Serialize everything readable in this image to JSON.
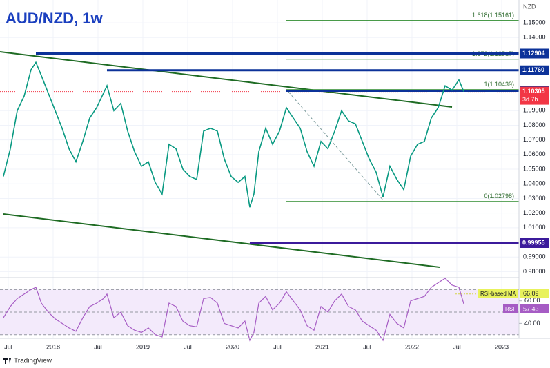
{
  "title": "AUD/NZD, 1w",
  "currency": "NZD",
  "brand": "TradingView",
  "chart_data": {
    "type": "line",
    "color": "#089981",
    "x": [
      2017.446,
      2017.523,
      2017.6,
      2017.677,
      2017.754,
      2017.808,
      2017.869,
      2017.946,
      2018.023,
      2018.1,
      2018.177,
      2018.254,
      2018.331,
      2018.408,
      2018.485,
      2018.562,
      2018.6,
      2018.677,
      2018.754,
      2018.831,
      2018.908,
      2018.985,
      2019.062,
      2019.138,
      2019.215,
      2019.292,
      2019.369,
      2019.446,
      2019.523,
      2019.6,
      2019.677,
      2019.754,
      2019.831,
      2019.908,
      2019.985,
      2020.062,
      2020.138,
      2020.192,
      2020.238,
      2020.292,
      2020.369,
      2020.446,
      2020.523,
      2020.6,
      2020.677,
      2020.754,
      2020.831,
      2020.908,
      2020.985,
      2021.062,
      2021.138,
      2021.215,
      2021.292,
      2021.369,
      2021.446,
      2021.523,
      2021.6,
      2021.677,
      2021.754,
      2021.831,
      2021.908,
      2021.985,
      2022.062,
      2022.138,
      2022.215,
      2022.292,
      2022.369,
      2022.446,
      2022.523,
      2022.577
    ],
    "values": [
      1.045,
      1.064,
      1.09,
      1.1,
      1.118,
      1.123,
      1.114,
      1.102,
      1.09,
      1.078,
      1.064,
      1.055,
      1.069,
      1.085,
      1.092,
      1.102,
      1.107,
      1.09,
      1.095,
      1.076,
      1.062,
      1.052,
      1.055,
      1.041,
      1.033,
      1.067,
      1.064,
      1.05,
      1.045,
      1.043,
      1.076,
      1.078,
      1.076,
      1.057,
      1.045,
      1.041,
      1.045,
      1.024,
      1.033,
      1.062,
      1.078,
      1.067,
      1.076,
      1.092,
      1.085,
      1.078,
      1.062,
      1.052,
      1.069,
      1.064,
      1.076,
      1.09,
      1.083,
      1.081,
      1.069,
      1.057,
      1.048,
      1.031,
      1.052,
      1.043,
      1.036,
      1.059,
      1.067,
      1.069,
      1.085,
      1.092,
      1.107,
      1.104,
      1.111,
      1.10305
    ],
    "xlim": [
      2017.408,
      2023.192
    ],
    "xticks": [
      {
        "value": 2017.5,
        "label": "Jul"
      },
      2018,
      {
        "value": 2018.5,
        "label": "Jul"
      },
      2019,
      {
        "value": 2019.5,
        "label": "Jul"
      },
      2020,
      {
        "value": 2020.5,
        "label": "Jul"
      },
      2021,
      {
        "value": 2021.5,
        "label": "Jul"
      },
      2022,
      {
        "value": 2022.5,
        "label": "Jul"
      },
      2023
    ],
    "ylim": [
      0.9769,
      1.1656
    ],
    "yticks": [
      {
        "value": 0.98,
        "label": "0.98000"
      },
      {
        "value": 0.99,
        "label": "0.99000"
      },
      {
        "value": 1.01,
        "label": "1.01000"
      },
      {
        "value": 1.02,
        "label": "1.02000"
      },
      {
        "value": 1.03,
        "label": "1.03000"
      },
      {
        "value": 1.04,
        "label": "1.04000"
      },
      {
        "value": 1.05,
        "label": "1.05000"
      },
      {
        "value": 1.06,
        "label": "1.06000"
      },
      {
        "value": 1.07,
        "label": "1.07000"
      },
      {
        "value": 1.08,
        "label": "1.08000"
      },
      {
        "value": 1.09,
        "label": "1.09000"
      },
      {
        "value": 1.14,
        "label": "1.14000"
      },
      {
        "value": 1.15,
        "label": "1.15000"
      }
    ],
    "price_levels": [
      {
        "price": 1.12904,
        "from": 2017.808,
        "color": "#0c3299"
      },
      {
        "price": {
          "value": 1.1176,
          "label": "1.11760"
        },
        "from": 2018.6,
        "color": "#0c3299"
      },
      {
        "price": 1.10355,
        "from": 2020.6,
        "color": "#0c3299"
      },
      {
        "price": 0.99955,
        "from": 2020.192,
        "color": "#3b1a9b"
      }
    ],
    "last_price": {
      "price": 1.10305,
      "countdown": "3d 7h",
      "color": "#f23645"
    },
    "fib": {
      "from": 2020.6,
      "color": "#2e8b2e",
      "levels": [
        {
          "price": 1.02798,
          "label": "0(1.02798)"
        },
        {
          "price": 1.10439,
          "label": "1(1.10439)"
        },
        {
          "price": 1.12517,
          "label": "1.272(1.12517)"
        },
        {
          "price": 1.15161,
          "label": "1.618(1.15161)"
        }
      ]
    },
    "rsi": {
      "name": "RSI",
      "color": "#a65cc4",
      "ma_name": "RSI-based MA",
      "ma_value": 66.09,
      "ylim": [
        28,
        80
      ],
      "yticks": [
        {
          "value": 40,
          "label": "40.00"
        },
        {
          "value": 60,
          "label": "60.00"
        }
      ],
      "bands": [
        70,
        50,
        30
      ],
      "values": [
        45,
        55,
        62,
        66,
        70,
        72,
        58,
        50,
        44,
        40,
        36,
        33,
        45,
        55,
        58,
        62,
        66,
        45,
        50,
        38,
        34,
        32,
        36,
        30,
        28,
        58,
        55,
        42,
        38,
        37,
        62,
        63,
        58,
        40,
        38,
        36,
        42,
        25,
        32,
        58,
        64,
        52,
        58,
        68,
        60,
        52,
        38,
        34,
        55,
        50,
        60,
        66,
        55,
        52,
        42,
        38,
        34,
        25,
        48,
        40,
        36,
        60,
        62,
        64,
        72,
        76,
        80,
        74,
        72,
        57.43
      ]
    }
  }
}
